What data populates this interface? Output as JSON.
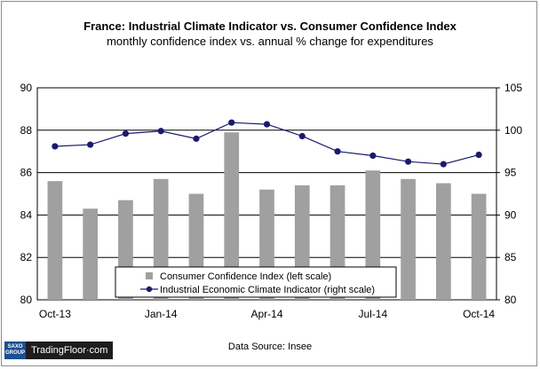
{
  "chart_data": {
    "type": "bar",
    "title": "France: Industrial Climate Indicator vs. Consumer Confidence Index",
    "subtitle": "monthly confidence index vs. annual  % change for expenditures",
    "x_tick_labels": [
      "Oct-13",
      "Jan-14",
      "Apr-14",
      "Jul-14",
      "Oct-14"
    ],
    "categories": [
      "Oct-13",
      "Nov-13",
      "Dec-13",
      "Jan-14",
      "Feb-14",
      "Mar-14",
      "Apr-14",
      "May-14",
      "Jun-14",
      "Jul-14",
      "Aug-14",
      "Sep-14",
      "Oct-14"
    ],
    "left_axis": {
      "ylim": [
        80,
        90
      ],
      "ticks": [
        "80",
        "82",
        "84",
        "86",
        "88",
        "90"
      ]
    },
    "right_axis": {
      "ylim": [
        80,
        105
      ],
      "ticks": [
        "80",
        "85",
        "90",
        "95",
        "100",
        "105"
      ]
    },
    "grid": "horizontal",
    "legend_position": "bottom-center",
    "series": [
      {
        "name": "Consumer Confidence Index (left scale)",
        "type": "bar",
        "axis": "left",
        "color": "#a0a0a0",
        "values": [
          85.6,
          84.3,
          84.7,
          85.7,
          85.0,
          87.9,
          85.2,
          85.4,
          85.4,
          86.1,
          85.7,
          85.5,
          85.0
        ]
      },
      {
        "name": "Industrial Economic Climate Indicator (right scale)",
        "type": "line",
        "axis": "right",
        "color": "#1a1a6e",
        "values": [
          98.1,
          98.3,
          99.6,
          99.9,
          99.0,
          100.9,
          100.7,
          99.3,
          97.5,
          97.0,
          96.3,
          96.0,
          97.1
        ]
      }
    ]
  },
  "footer": {
    "source": "Data Source:  Insee",
    "logo_group_line1": "SAXO",
    "logo_group_line2": "GROUP",
    "logo_brand": "TradingFloor·com"
  }
}
